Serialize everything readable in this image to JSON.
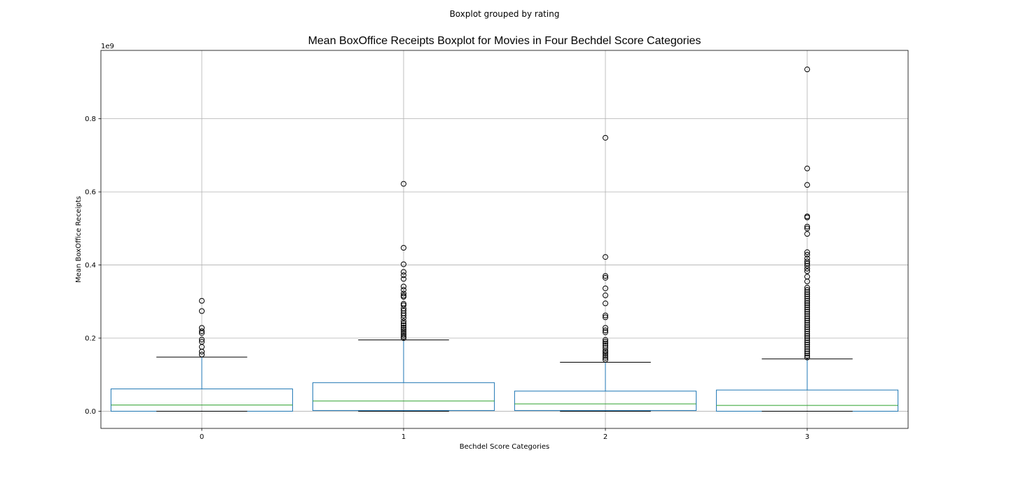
{
  "figure": {
    "suptitle": "Boxplot grouped by rating"
  },
  "colors": {
    "box": "#1f77b4",
    "median": "#2ca02c",
    "whisker": "#1f77b4",
    "cap": "#000000",
    "flier": "#000000",
    "grid": "#b0b0b0"
  },
  "chart_data": {
    "type": "boxplot",
    "title": "Mean BoxOffice Receipts Boxplot for Movies in Four Bechdel Score Categories",
    "xlabel": "Bechdel Score Categories",
    "ylabel": "Mean BoxOffice Receipts",
    "y_offset_label": "1e9",
    "ylim": [
      -0.047,
      0.987
    ],
    "y_ticks": [
      0.0,
      0.2,
      0.4,
      0.6,
      0.8
    ],
    "y_tick_labels": [
      "0.0",
      "0.2",
      "0.4",
      "0.6",
      "0.8"
    ],
    "grid": true,
    "categories": [
      "0",
      "1",
      "2",
      "3"
    ],
    "boxes": [
      {
        "category": "0",
        "whisker_low": 0.0,
        "q1": 0.0,
        "median": 0.017,
        "q3": 0.061,
        "whisker_high": 0.148,
        "fliers": [
          0.302,
          0.274,
          0.228,
          0.219,
          0.214,
          0.196,
          0.19,
          0.176,
          0.163,
          0.155
        ]
      },
      {
        "category": "1",
        "whisker_low": 0.0,
        "q1": 0.002,
        "median": 0.028,
        "q3": 0.078,
        "whisker_high": 0.195,
        "fliers": [
          0.622,
          0.447,
          0.402,
          0.381,
          0.372,
          0.362,
          0.341,
          0.332,
          0.322,
          0.316,
          0.313,
          0.294,
          0.29,
          0.281,
          0.275,
          0.268,
          0.262,
          0.255,
          0.246,
          0.24,
          0.235,
          0.229,
          0.224,
          0.219,
          0.214,
          0.209,
          0.204,
          0.2
        ]
      },
      {
        "category": "2",
        "whisker_low": 0.0,
        "q1": 0.002,
        "median": 0.02,
        "q3": 0.055,
        "whisker_high": 0.134,
        "fliers": [
          0.748,
          0.422,
          0.37,
          0.365,
          0.336,
          0.317,
          0.295,
          0.262,
          0.257,
          0.228,
          0.221,
          0.216,
          0.195,
          0.19,
          0.185,
          0.179,
          0.173,
          0.166,
          0.162,
          0.157,
          0.151,
          0.146,
          0.141
        ]
      },
      {
        "category": "3",
        "whisker_low": 0.0,
        "q1": 0.0,
        "median": 0.016,
        "q3": 0.058,
        "whisker_high": 0.143,
        "fliers": [
          0.935,
          0.664,
          0.619,
          0.533,
          0.53,
          0.505,
          0.5,
          0.485,
          0.435,
          0.428,
          0.418,
          0.41,
          0.404,
          0.398,
          0.39,
          0.383,
          0.368,
          0.355,
          0.338,
          0.332,
          0.326,
          0.32,
          0.314,
          0.308,
          0.302,
          0.296,
          0.29,
          0.284,
          0.278,
          0.272,
          0.266,
          0.26,
          0.254,
          0.248,
          0.242,
          0.236,
          0.23,
          0.224,
          0.218,
          0.212,
          0.206,
          0.2,
          0.194,
          0.188,
          0.182,
          0.176,
          0.17,
          0.164,
          0.158,
          0.152,
          0.147
        ]
      }
    ]
  }
}
